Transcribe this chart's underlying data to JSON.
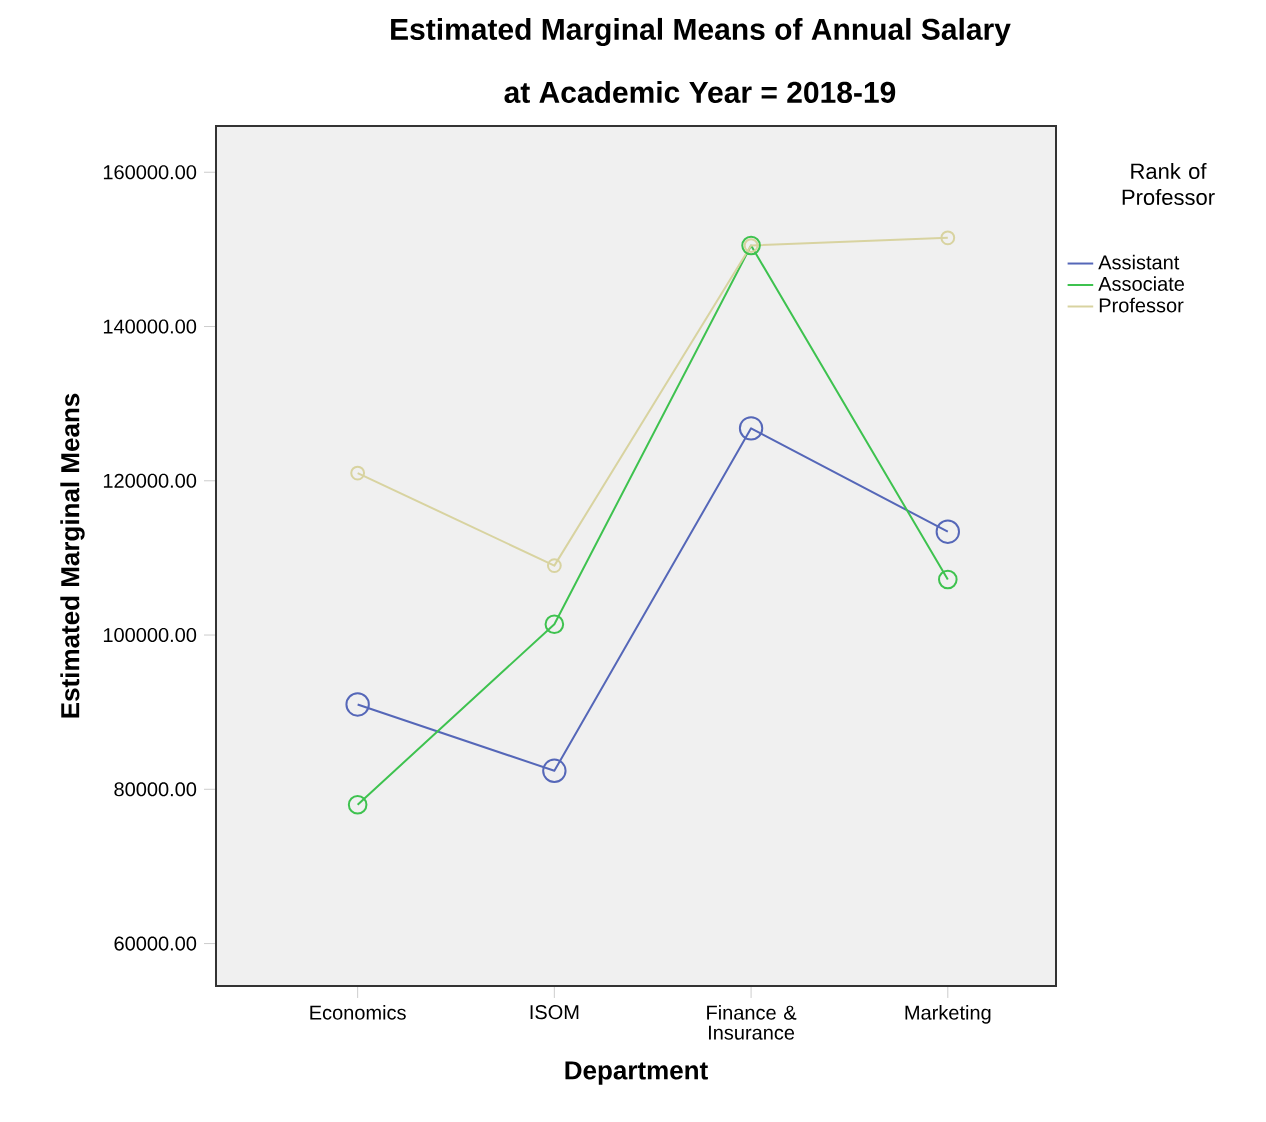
{
  "chart_data": {
    "type": "line",
    "title": "Estimated Marginal Means of Annual Salary",
    "subtitle": "at Academic Year = 2018-19",
    "xlabel": "Department",
    "ylabel": "Estimated Marginal Means",
    "legend_title": "Rank of Professor",
    "categories": [
      "Economics",
      "ISOM",
      "Finance & Insurance",
      "Marketing"
    ],
    "series": [
      {
        "name": "Assistant",
        "color": "#5567b8",
        "values": [
          91000,
          82400,
          126800,
          113400
        ]
      },
      {
        "name": "Associate",
        "color": "#3ec24f",
        "values": [
          78000,
          101400,
          150500,
          107200
        ]
      },
      {
        "name": "Professor",
        "color": "#d8d3a0",
        "values": [
          121000,
          109000,
          150500,
          151500
        ]
      }
    ],
    "ylim": [
      54500,
      166000
    ],
    "yticks": [
      {
        "value": 60000,
        "label": "60000.00"
      },
      {
        "value": 80000,
        "label": "80000.00"
      },
      {
        "value": 100000,
        "label": "100000.00"
      },
      {
        "value": 120000,
        "label": "120000.00"
      },
      {
        "value": 140000,
        "label": "140000.00"
      },
      {
        "value": 160000,
        "label": "160000.00"
      }
    ],
    "grid": false,
    "legend": "right",
    "marker": "circle",
    "line_style": "solid"
  }
}
